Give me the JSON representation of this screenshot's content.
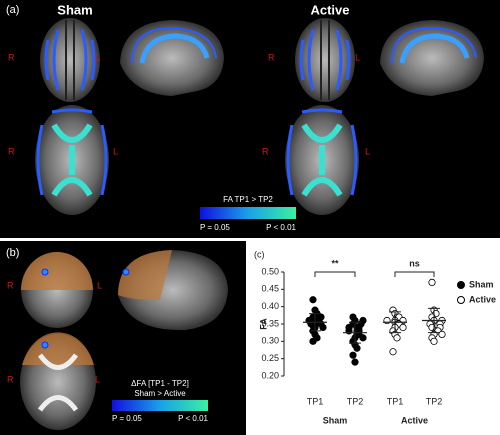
{
  "panel_a": {
    "label": "(a)",
    "groups": [
      "Sham",
      "Active"
    ],
    "sides": [
      "R",
      "L"
    ],
    "colorbar": {
      "title": "FA  TP1 > TP2",
      "low": "P = 0.05",
      "high": "P < 0.01"
    }
  },
  "panel_b": {
    "label": "(b)",
    "sides": [
      "R",
      "L"
    ],
    "colorbar": {
      "title": "ΔFA [TP1 - TP2]",
      "subtitle": "Sham > Active",
      "low": "P = 0.05",
      "high": "P < 0.01"
    }
  },
  "chart_data": {
    "type": "strip",
    "label": "(c)",
    "ylabel": "FA",
    "categories": [
      "TP1",
      "TP2",
      "TP1",
      "TP2"
    ],
    "groups": [
      "Sham",
      "Active"
    ],
    "annotations": [
      "**",
      "ns"
    ],
    "ylim": [
      0.2,
      0.5
    ],
    "yticks": [
      {
        "value": 0.2,
        "label": "0.20"
      },
      {
        "value": 0.25,
        "label": "0.25"
      },
      {
        "value": 0.3,
        "label": "0.30"
      },
      {
        "value": 0.35,
        "label": "0.35"
      },
      {
        "value": 0.4,
        "label": "0.40"
      },
      {
        "value": 0.45,
        "label": "0.45"
      },
      {
        "value": 0.5,
        "label": "0.50"
      }
    ],
    "series": [
      {
        "name": "Sham",
        "color": "#000000",
        "filled": true,
        "values": [
          [
            0.42,
            0.39,
            0.38,
            0.37,
            0.37,
            0.36,
            0.36,
            0.36,
            0.355,
            0.35,
            0.35,
            0.35,
            0.345,
            0.34,
            0.34,
            0.33,
            0.32,
            0.31,
            0.3
          ],
          [
            0.37,
            0.36,
            0.36,
            0.35,
            0.35,
            0.34,
            0.34,
            0.34,
            0.33,
            0.33,
            0.33,
            0.32,
            0.32,
            0.31,
            0.31,
            0.3,
            0.29,
            0.28,
            0.26,
            0.24
          ]
        ],
        "mean": [
          0.355,
          0.325
        ],
        "sd": [
          0.025,
          0.03
        ]
      },
      {
        "name": "Active",
        "color": "#000000",
        "filled": false,
        "values": [
          [
            0.39,
            0.38,
            0.37,
            0.37,
            0.36,
            0.36,
            0.36,
            0.355,
            0.35,
            0.35,
            0.34,
            0.34,
            0.33,
            0.32,
            0.31,
            0.27
          ],
          [
            0.47,
            0.39,
            0.38,
            0.37,
            0.36,
            0.36,
            0.35,
            0.35,
            0.35,
            0.34,
            0.34,
            0.33,
            0.33,
            0.32,
            0.32,
            0.31,
            0.3
          ]
        ],
        "mean": [
          0.355,
          0.36
        ],
        "sd": [
          0.03,
          0.035
        ]
      }
    ]
  }
}
